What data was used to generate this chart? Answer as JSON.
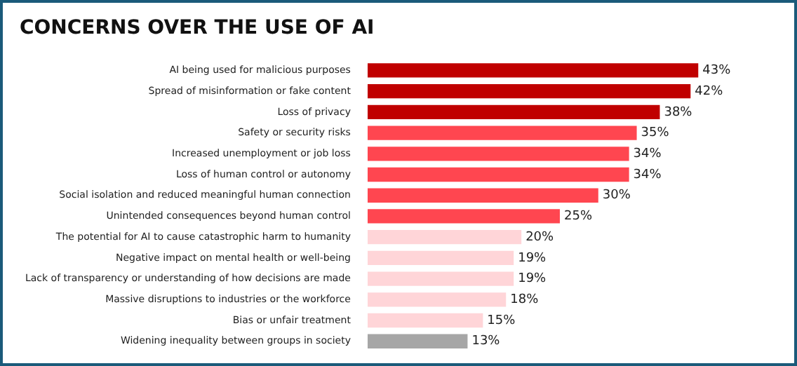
{
  "chart_data": {
    "type": "bar",
    "orientation": "horizontal",
    "title": "CONCERNS OVER THE USE OF AI",
    "categories": [
      "AI being used for malicious purposes",
      "Spread of misinformation or fake content",
      "Loss of privacy",
      "Safety or security risks",
      "Increased unemployment or job loss",
      "Loss of human control or autonomy",
      "Social isolation and reduced meaningful human connection",
      "Unintended consequences beyond human control",
      "The potential for AI to cause catastrophic harm to humanity",
      "Negative impact on mental health or well-being",
      "Lack of transparency or understanding of how decisions are made",
      "Massive disruptions to industries or the workforce",
      "Bias or unfair treatment",
      "Widening inequality between groups in society"
    ],
    "values": [
      43,
      42,
      38,
      35,
      34,
      34,
      30,
      25,
      20,
      19,
      19,
      18,
      15,
      13
    ],
    "colors": [
      "#c00000",
      "#c00000",
      "#c00000",
      "#ff4650",
      "#ff4650",
      "#ff4650",
      "#ff4650",
      "#ff4650",
      "#ffd5d8",
      "#ffd5d8",
      "#ffd5d8",
      "#ffd5d8",
      "#ffd5d8",
      "#a6a6a6"
    ],
    "value_labels": [
      "43%",
      "42%",
      "38%",
      "35%",
      "34%",
      "34%",
      "30%",
      "25%",
      "20%",
      "19%",
      "19%",
      "18%",
      "15%",
      "13%"
    ],
    "legend": false
  }
}
